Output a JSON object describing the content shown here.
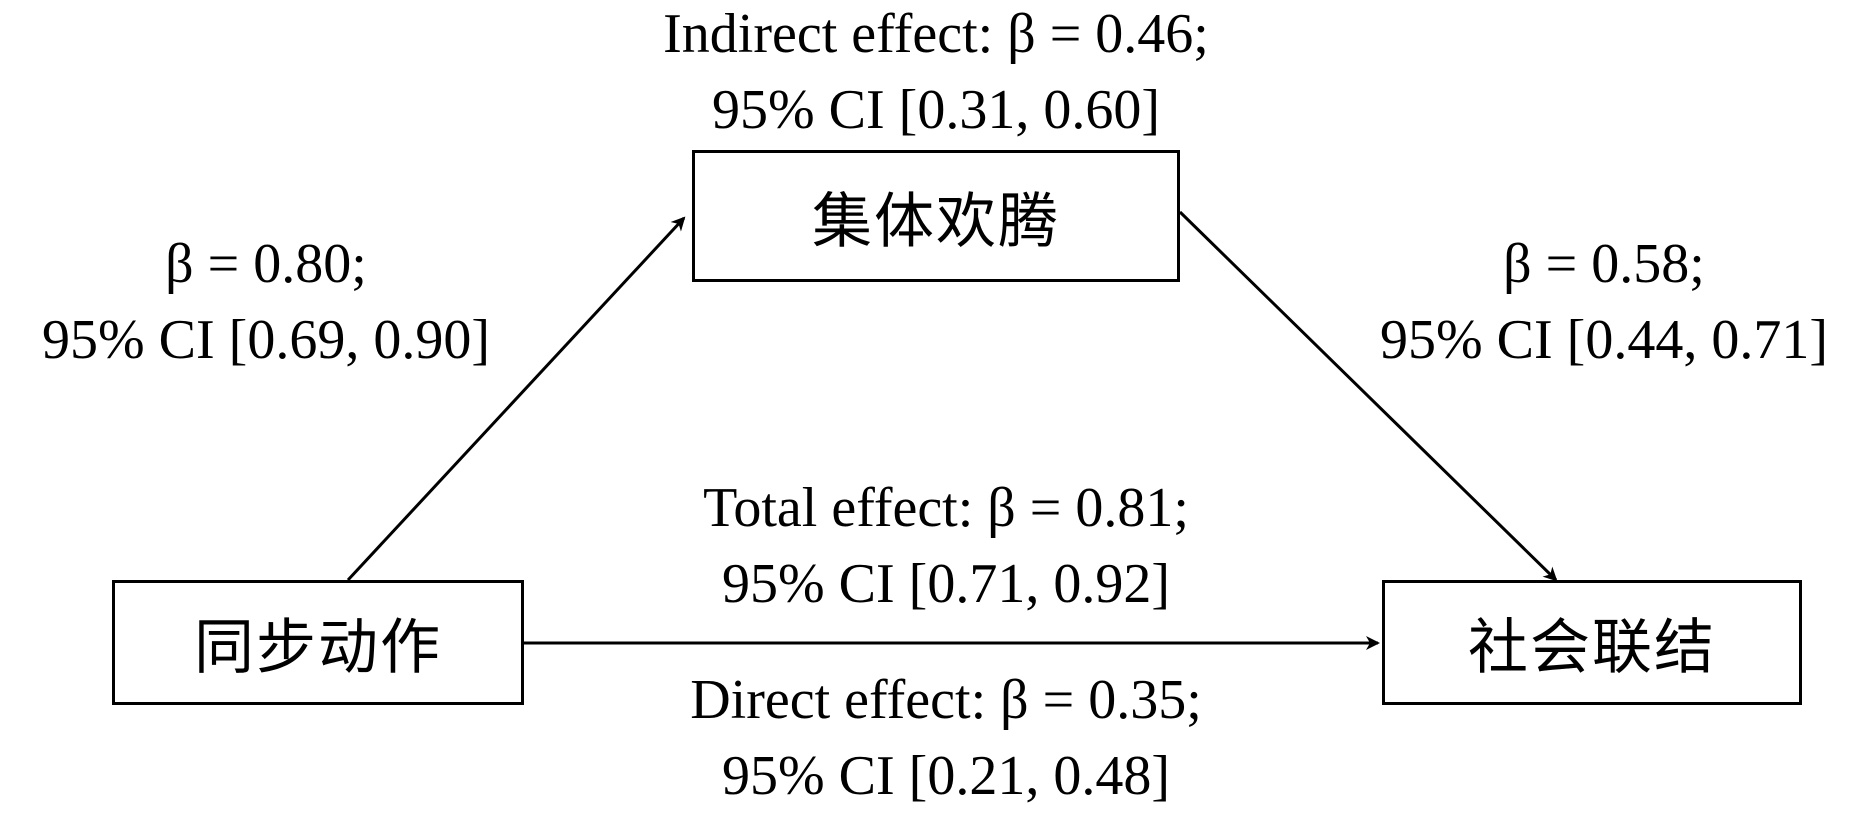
{
  "nodes": {
    "mediator": "集体欢腾",
    "independent": "同步动作",
    "dependent": "社会联结"
  },
  "paths": {
    "indirect": {
      "line1": "Indirect effect: β = 0.46;",
      "line2": "95% CI [0.31, 0.60]"
    },
    "a": {
      "line1": "β = 0.80;",
      "line2": "95% CI [0.69, 0.90]"
    },
    "b": {
      "line1": "β = 0.58;",
      "line2": "95% CI [0.44, 0.71]"
    },
    "total": {
      "line1": "Total effect: β = 0.81;",
      "line2": "95% CI [0.71, 0.92]"
    },
    "direct": {
      "line1": "Direct effect: β = 0.35;",
      "line2": "95% CI [0.21, 0.48]"
    }
  }
}
